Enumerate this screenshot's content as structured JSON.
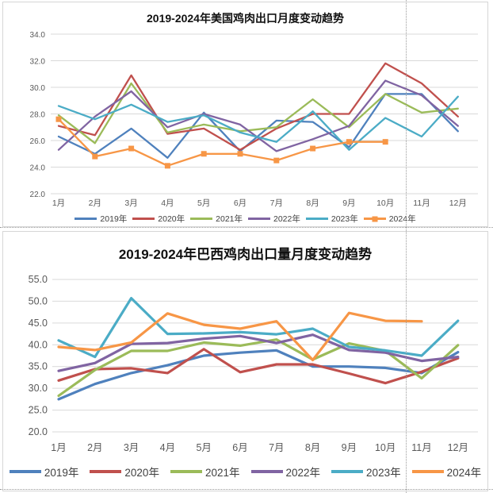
{
  "chart_data": [
    {
      "type": "line",
      "title": "2019-2024年美国鸡肉出口月度变动趋势",
      "x_categories": [
        "1月",
        "2月",
        "3月",
        "4月",
        "5月",
        "6月",
        "7月",
        "8月",
        "9月",
        "10月",
        "11月",
        "12月"
      ],
      "y_tick_labels": [
        "34.0",
        "32.0",
        "30.0",
        "28.0",
        "26.0",
        "24.0",
        "22.0"
      ],
      "ylim": [
        22.0,
        34.0
      ],
      "grid": "horizontal",
      "legend_position": "bottom",
      "series": [
        {
          "name": "2019年",
          "color": "#4F81BD",
          "marker": "none",
          "values": [
            26.3,
            25.0,
            26.9,
            24.7,
            28.1,
            25.2,
            27.5,
            27.4,
            25.5,
            29.5,
            29.5,
            26.7
          ]
        },
        {
          "name": "2020年",
          "color": "#C0504D",
          "marker": "none",
          "values": [
            27.1,
            26.4,
            30.9,
            26.5,
            26.9,
            25.3,
            26.9,
            28.0,
            28.0,
            31.8,
            30.3,
            27.8
          ]
        },
        {
          "name": "2021年",
          "color": "#9BBB59",
          "marker": "none",
          "values": [
            27.9,
            25.8,
            30.3,
            26.6,
            27.2,
            26.7,
            27.0,
            29.1,
            27.0,
            29.5,
            28.1,
            28.4
          ]
        },
        {
          "name": "2022年",
          "color": "#8064A2",
          "marker": "none",
          "values": [
            25.3,
            27.8,
            29.7,
            27.0,
            28.0,
            27.2,
            25.2,
            26.1,
            27.1,
            30.5,
            29.4,
            27.1
          ]
        },
        {
          "name": "2023年",
          "color": "#4BACC6",
          "marker": "none",
          "values": [
            28.6,
            27.6,
            28.7,
            27.4,
            27.9,
            26.6,
            25.9,
            28.2,
            25.3,
            27.7,
            26.3,
            29.3
          ]
        },
        {
          "name": "2024年",
          "color": "#F79646",
          "marker": "square",
          "values": [
            27.6,
            24.8,
            25.4,
            24.1,
            25.0,
            25.0,
            24.5,
            25.4,
            25.9,
            25.9
          ]
        }
      ]
    },
    {
      "type": "line",
      "title": "2019-2024年巴西鸡肉出口量月度变动趋势",
      "x_categories": [
        "1月",
        "2月",
        "3月",
        "4月",
        "5月",
        "6月",
        "7月",
        "8月",
        "9月",
        "10月",
        "11月",
        "12月"
      ],
      "y_tick_labels": [
        "55.0",
        "50.0",
        "45.0",
        "40.0",
        "35.0",
        "30.0",
        "25.0",
        "20.0"
      ],
      "ylim": [
        20.0,
        55.0
      ],
      "grid": "horizontal",
      "legend_position": "bottom",
      "series": [
        {
          "name": "2019年",
          "color": "#4F81BD",
          "marker": "none",
          "values": [
            27.5,
            31.0,
            33.5,
            35.3,
            37.5,
            38.2,
            38.7,
            35.0,
            35.0,
            34.7,
            33.5,
            38.3
          ]
        },
        {
          "name": "2020年",
          "color": "#C0504D",
          "marker": "none",
          "values": [
            31.8,
            34.4,
            34.6,
            33.5,
            39.0,
            33.7,
            35.5,
            35.5,
            33.4,
            31.2,
            33.8,
            36.9
          ]
        },
        {
          "name": "2021年",
          "color": "#9BBB59",
          "marker": "none",
          "values": [
            28.3,
            34.2,
            38.6,
            38.6,
            40.5,
            39.8,
            41.2,
            36.6,
            40.3,
            38.6,
            32.3,
            39.9
          ]
        },
        {
          "name": "2022年",
          "color": "#8064A2",
          "marker": "none",
          "values": [
            34.0,
            35.8,
            40.2,
            40.4,
            41.4,
            42.0,
            40.4,
            42.3,
            38.8,
            38.2,
            36.3,
            37.2
          ]
        },
        {
          "name": "2023年",
          "color": "#4BACC6",
          "marker": "none",
          "values": [
            41.0,
            37.2,
            50.7,
            42.5,
            42.6,
            42.9,
            42.4,
            43.7,
            39.5,
            38.7,
            37.5,
            45.5
          ]
        },
        {
          "name": "2024年",
          "color": "#F79646",
          "marker": "none",
          "values": [
            39.5,
            38.8,
            40.5,
            47.2,
            44.6,
            43.7,
            45.4,
            36.5,
            47.3,
            45.5,
            45.4
          ]
        }
      ]
    }
  ]
}
